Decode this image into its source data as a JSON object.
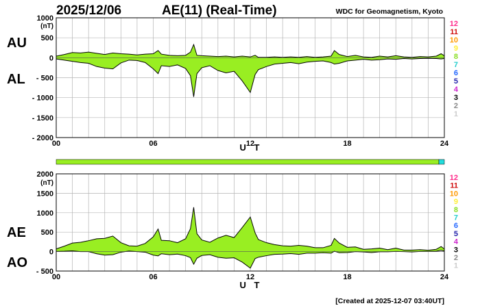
{
  "header": {
    "date": "2025/12/06",
    "title": "AE(11) (Real-Time)",
    "organization": "WDC for Geomagnetism, Kyoto"
  },
  "footer": {
    "created": "[Created at 2025-12-07 03:40UT]"
  },
  "station_count_labels": [
    "12",
    "11",
    "10",
    "9",
    "8",
    "7",
    "6",
    "5",
    "4",
    "3",
    "2",
    "1"
  ],
  "station_count_colors": [
    "#ff2a8a",
    "#d01010",
    "#ff9900",
    "#ffee33",
    "#88dd22",
    "#22cccc",
    "#2266ff",
    "#2222aa",
    "#cc22cc",
    "#000000",
    "#888888",
    "#cccccc"
  ],
  "colors": {
    "fill": "#99ee22",
    "line": "#000000",
    "grid": "#b4b4b4",
    "coverage": "#99ee22",
    "coverage_end": "#22dddd"
  },
  "chart_data": [
    {
      "type": "area",
      "panel": "AU/AL",
      "y_labels": [
        "AU",
        "AL"
      ],
      "unit": "(nT)",
      "xlabel": "U T",
      "xlim": [
        0,
        24
      ],
      "x_ticks": [
        0,
        6,
        12,
        18,
        24
      ],
      "x_tick_labels": [
        "00",
        "06",
        "12",
        "18",
        "24"
      ],
      "ylim": [
        -2000,
        1000
      ],
      "y_ticks": [
        1000,
        500,
        0,
        -500,
        -1000,
        -1500,
        -2000
      ],
      "y_tick_labels": [
        "1000",
        "500",
        "0",
        "- 500",
        "- 1000",
        "- 1500",
        "- 2000"
      ],
      "grid": true,
      "series": [
        {
          "name": "AU",
          "x": [
            0,
            0.5,
            1,
            1.5,
            2,
            2.5,
            3,
            3.5,
            4,
            4.5,
            5,
            5.5,
            6,
            6.3,
            6.5,
            7,
            7.5,
            8,
            8.3,
            8.5,
            8.7,
            9,
            9.5,
            10,
            10.5,
            11,
            11.5,
            12,
            12.3,
            12.5,
            13,
            13.5,
            14,
            14.5,
            15,
            15.5,
            16,
            16.5,
            17,
            17.2,
            17.5,
            18,
            18.5,
            19,
            19.5,
            20,
            20.5,
            21,
            21.5,
            22,
            22.5,
            23,
            23.5,
            23.8,
            24
          ],
          "values": [
            40,
            80,
            130,
            120,
            140,
            110,
            80,
            120,
            100,
            90,
            70,
            90,
            100,
            180,
            90,
            60,
            50,
            60,
            140,
            330,
            60,
            50,
            40,
            30,
            40,
            20,
            40,
            20,
            60,
            10,
            10,
            20,
            10,
            20,
            10,
            30,
            10,
            20,
            40,
            180,
            80,
            30,
            60,
            20,
            10,
            40,
            20,
            50,
            20,
            10,
            30,
            20,
            40,
            100,
            50
          ]
        },
        {
          "name": "AL",
          "x": [
            0,
            0.5,
            1,
            1.5,
            2,
            2.5,
            3,
            3.5,
            4,
            4.5,
            5,
            5.5,
            6,
            6.3,
            6.5,
            7,
            7.5,
            8,
            8.3,
            8.5,
            8.7,
            9,
            9.5,
            10,
            10.5,
            11,
            11.5,
            12,
            12.3,
            12.5,
            13,
            13.5,
            14,
            14.5,
            15,
            15.5,
            16,
            16.5,
            17,
            17.2,
            17.5,
            18,
            18.5,
            19,
            19.5,
            20,
            20.5,
            21,
            21.5,
            22,
            22.5,
            23,
            23.5,
            23.8,
            24
          ],
          "values": [
            -30,
            -60,
            -90,
            -120,
            -140,
            -220,
            -260,
            -280,
            -130,
            -60,
            -70,
            -120,
            -280,
            -400,
            -200,
            -220,
            -180,
            -270,
            -450,
            -980,
            -400,
            -250,
            -200,
            -320,
            -380,
            -340,
            -580,
            -870,
            -420,
            -300,
            -220,
            -160,
            -140,
            -120,
            -150,
            -110,
            -90,
            -80,
            -120,
            -160,
            -140,
            -80,
            -60,
            -40,
            -60,
            -50,
            -30,
            -40,
            -20,
            -30,
            -20,
            -15,
            -20,
            -30,
            -20
          ]
        }
      ]
    },
    {
      "type": "area",
      "panel": "AE/AO",
      "y_labels": [
        "AE",
        "AO"
      ],
      "unit": "(nT)",
      "xlabel": "U T",
      "xlim": [
        0,
        24
      ],
      "x_ticks": [
        0,
        6,
        12,
        18,
        24
      ],
      "x_tick_labels": [
        "00",
        "06",
        "12",
        "18",
        "24"
      ],
      "ylim": [
        -500,
        2000
      ],
      "y_ticks": [
        2000,
        1500,
        1000,
        500,
        0,
        -500
      ],
      "y_tick_labels": [
        "2000",
        "1500",
        "1000",
        "500",
        "0",
        "- 500"
      ],
      "grid": true,
      "series": [
        {
          "name": "AE",
          "x": [
            0,
            0.5,
            1,
            1.5,
            2,
            2.5,
            3,
            3.5,
            4,
            4.5,
            5,
            5.5,
            6,
            6.3,
            6.5,
            7,
            7.5,
            8,
            8.3,
            8.5,
            8.7,
            9,
            9.5,
            10,
            10.5,
            11,
            11.5,
            12,
            12.3,
            12.5,
            13,
            13.5,
            14,
            14.5,
            15,
            15.5,
            16,
            16.5,
            17,
            17.2,
            17.5,
            18,
            18.5,
            19,
            19.5,
            20,
            20.5,
            21,
            21.5,
            22,
            22.5,
            23,
            23.5,
            23.8,
            24
          ],
          "values": [
            70,
            140,
            220,
            240,
            280,
            330,
            340,
            400,
            230,
            150,
            140,
            210,
            380,
            580,
            290,
            280,
            230,
            330,
            590,
            1140,
            460,
            300,
            240,
            350,
            420,
            360,
            620,
            890,
            480,
            310,
            230,
            180,
            150,
            140,
            160,
            140,
            100,
            100,
            160,
            340,
            220,
            110,
            120,
            60,
            70,
            90,
            50,
            90,
            40,
            40,
            50,
            35,
            60,
            130,
            70
          ]
        },
        {
          "name": "AO",
          "x": [
            0,
            0.5,
            1,
            1.5,
            2,
            2.5,
            3,
            3.5,
            4,
            4.5,
            5,
            5.5,
            6,
            6.3,
            6.5,
            7,
            7.5,
            8,
            8.3,
            8.5,
            8.7,
            9,
            9.5,
            10,
            10.5,
            11,
            11.5,
            12,
            12.3,
            12.5,
            13,
            13.5,
            14,
            14.5,
            15,
            15.5,
            16,
            16.5,
            17,
            17.2,
            17.5,
            18,
            18.5,
            19,
            19.5,
            20,
            20.5,
            21,
            21.5,
            22,
            22.5,
            23,
            23.5,
            23.8,
            24
          ],
          "values": [
            5,
            10,
            20,
            0,
            0,
            -55,
            -90,
            -80,
            -15,
            15,
            0,
            -15,
            -90,
            -110,
            -55,
            -80,
            -65,
            -105,
            -155,
            -325,
            -170,
            -100,
            -80,
            -145,
            -170,
            -160,
            -270,
            -425,
            -180,
            -145,
            -105,
            -70,
            -65,
            -50,
            -70,
            -40,
            -40,
            -30,
            -40,
            10,
            -30,
            -25,
            0,
            -10,
            -25,
            -5,
            -5,
            5,
            0,
            -10,
            5,
            3,
            10,
            35,
            15
          ]
        }
      ]
    }
  ]
}
